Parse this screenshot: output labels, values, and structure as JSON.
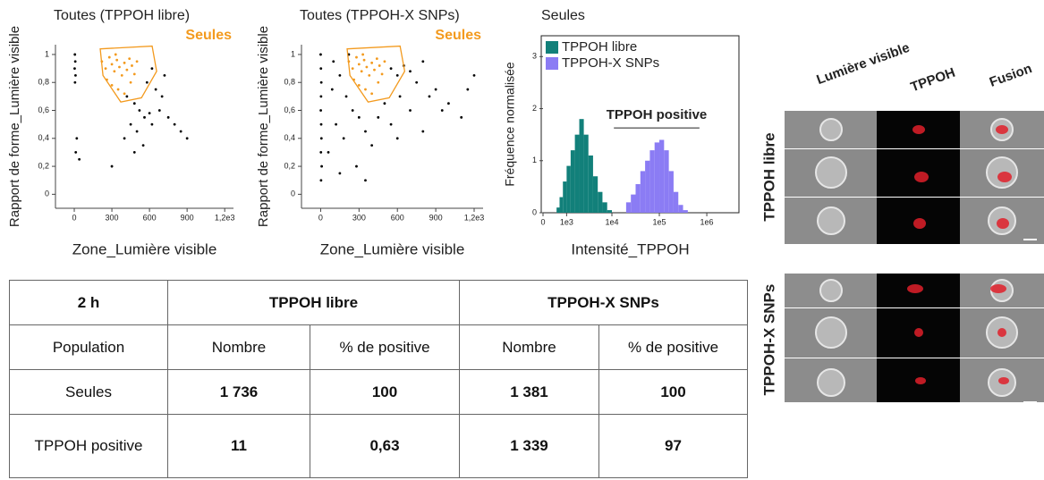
{
  "chart_data": [
    {
      "type": "scatter",
      "title": "Toutes (TPPOH libre)",
      "xlabel": "Zone_Lumière visible",
      "ylabel": "Rapport de forme_Lumière visible",
      "xlim": [
        -150,
        1270
      ],
      "ylim": [
        -0.1,
        1.07
      ],
      "xticks": [
        0,
        300,
        600,
        900,
        {
          "value": 1200,
          "label": "1,2e3"
        }
      ],
      "yticks": [
        0,
        {
          "value": 0.2,
          "label": "0,2"
        },
        {
          "value": 0.4,
          "label": "0,4"
        },
        {
          "value": 0.6,
          "label": "0,6"
        },
        {
          "value": 0.8,
          "label": "0,8"
        },
        1
      ],
      "series": [
        {
          "color": "#000000",
          "x": [
            5,
            8,
            3,
            10,
            6,
            12,
            40,
            20,
            420,
            480,
            520,
            560,
            600,
            450,
            500,
            620,
            680,
            700,
            650,
            580,
            750,
            800,
            850,
            900,
            550,
            480,
            400,
            300,
            720,
            620
          ],
          "values": [
            1.0,
            0.95,
            0.9,
            0.85,
            0.8,
            0.3,
            0.25,
            0.4,
            0.7,
            0.65,
            0.6,
            0.55,
            0.58,
            0.5,
            0.45,
            0.5,
            0.6,
            0.7,
            0.75,
            0.8,
            0.55,
            0.5,
            0.45,
            0.4,
            0.35,
            0.3,
            0.4,
            0.2,
            0.85,
            0.9
          ]
        },
        {
          "color": "#f39a1e",
          "x": [
            220,
            250,
            280,
            300,
            320,
            340,
            360,
            380,
            400,
            420,
            440,
            460,
            480,
            500,
            260,
            300,
            350,
            400,
            330,
            450
          ],
          "values": [
            0.95,
            0.9,
            0.98,
            0.93,
            0.88,
            0.96,
            0.91,
            0.85,
            0.94,
            0.89,
            0.97,
            0.92,
            0.86,
            0.95,
            0.82,
            0.78,
            0.75,
            0.72,
            1.0,
            0.8
          ]
        }
      ],
      "gate": {
        "label": "Seules",
        "color": "#f39a1e",
        "x": [
          207,
          621,
          657,
          536,
          371,
          229
        ],
        "y": [
          1.04,
          1.06,
          0.88,
          0.69,
          0.66,
          0.85
        ]
      }
    },
    {
      "type": "scatter",
      "title": "Toutes (TPPOH-X SNPs)",
      "xlabel": "Zone_Lumière visible",
      "ylabel": "Rapport de forme_Lumière visible",
      "xlim": [
        -150,
        1270
      ],
      "ylim": [
        -0.1,
        1.07
      ],
      "xticks": [
        0,
        300,
        600,
        900,
        {
          "value": 1200,
          "label": "1,2e3"
        }
      ],
      "yticks": [
        0,
        {
          "value": 0.2,
          "label": "0,2"
        },
        {
          "value": 0.4,
          "label": "0,4"
        },
        {
          "value": 0.6,
          "label": "0,6"
        },
        {
          "value": 0.8,
          "label": "0,8"
        },
        1
      ],
      "series": [
        {
          "color": "#000000",
          "x": [
            0,
            2,
            5,
            3,
            1,
            4,
            6,
            2,
            8,
            3,
            100,
            150,
            200,
            250,
            120,
            180,
            60,
            300,
            350,
            280,
            550,
            600,
            650,
            700,
            750,
            800,
            850,
            900,
            950,
            1000,
            1100,
            1150,
            620,
            700,
            500,
            450,
            550,
            600,
            800,
            400,
            150,
            350,
            220,
            90,
            1200
          ],
          "values": [
            1.0,
            0.9,
            0.8,
            0.7,
            0.6,
            0.5,
            0.4,
            0.3,
            0.2,
            0.1,
            0.95,
            0.85,
            0.7,
            0.6,
            0.5,
            0.4,
            0.3,
            0.55,
            0.45,
            0.2,
            0.9,
            0.85,
            0.92,
            0.88,
            0.8,
            0.95,
            0.7,
            0.75,
            0.6,
            0.65,
            0.55,
            0.75,
            0.7,
            0.6,
            0.65,
            0.55,
            0.5,
            0.4,
            0.45,
            0.35,
            0.15,
            0.1,
            1.0,
            0.75,
            0.85
          ]
        },
        {
          "color": "#f39a1e",
          "x": [
            220,
            250,
            280,
            300,
            320,
            340,
            360,
            380,
            400,
            420,
            440,
            460,
            480,
            500,
            260,
            300,
            350,
            400,
            330,
            450
          ],
          "values": [
            0.95,
            0.9,
            0.98,
            0.93,
            0.88,
            0.96,
            0.91,
            0.85,
            0.94,
            0.89,
            0.97,
            0.92,
            0.86,
            0.95,
            0.82,
            0.78,
            0.75,
            0.72,
            1.0,
            0.8
          ]
        }
      ],
      "gate": {
        "label": "Seules",
        "color": "#f39a1e",
        "x": [
          207,
          621,
          657,
          536,
          371,
          229
        ],
        "y": [
          1.04,
          1.06,
          0.88,
          0.69,
          0.66,
          0.85
        ]
      }
    },
    {
      "type": "histogram",
      "title": "Seules",
      "xlabel": "Intensité_TPPOH",
      "ylabel": "Fréquence normalisée",
      "xscale": "asinh",
      "xlim": [
        0,
        4000000
      ],
      "ylim": [
        0,
        3.4
      ],
      "xticks": [
        0,
        {
          "value": 1000,
          "label": "1e3"
        },
        {
          "value": 10000,
          "label": "1e4"
        },
        {
          "value": 100000,
          "label": "1e5"
        },
        {
          "value": 1000000,
          "label": "1e6"
        }
      ],
      "yticks": [
        0,
        1,
        2,
        3
      ],
      "legend": "top-left",
      "series": [
        {
          "name": "TPPOH libre",
          "color": "#12807a",
          "bins": [
            500,
            631,
            794,
            1000,
            1259,
            1585,
            1995,
            2512,
            3162,
            3981,
            5012,
            6310,
            7943,
            10000
          ],
          "values": [
            0.1,
            0.3,
            0.6,
            0.9,
            1.2,
            1.5,
            1.8,
            1.5,
            1.1,
            0.7,
            0.4,
            0.2,
            0.05
          ]
        },
        {
          "name": "TPPOH-X SNPs",
          "color": "#8b7cf4",
          "bins": [
            19953,
            25119,
            31623,
            39811,
            50119,
            63096,
            79433,
            100000,
            125893,
            158489,
            199526,
            251189,
            316228,
            398107
          ],
          "values": [
            0.2,
            0.35,
            0.55,
            0.8,
            1.0,
            1.2,
            1.35,
            1.4,
            1.2,
            0.8,
            0.4,
            0.15,
            0.05
          ]
        }
      ],
      "annotation": {
        "text": "TPPOH positive",
        "x": [
          11000,
          700000
        ],
        "y": 1.63
      }
    }
  ],
  "table": {
    "header": [
      "2 h",
      "TPPOH libre",
      "TPPOH-X SNPs"
    ],
    "subheader": [
      "Population",
      "Nombre",
      "% de positive",
      "Nombre",
      "% de positive"
    ],
    "rows": [
      [
        "Seules",
        "1 736",
        "100",
        "1 381",
        "100"
      ],
      [
        "TPPOH positive",
        "11",
        "0,63",
        "1 339",
        "97"
      ]
    ]
  },
  "image_panel": {
    "columns": [
      "Lumière visible",
      "TPPOH",
      "Fusion"
    ],
    "rows": [
      "TPPOH libre",
      "TPPOH-X SNPs"
    ]
  }
}
